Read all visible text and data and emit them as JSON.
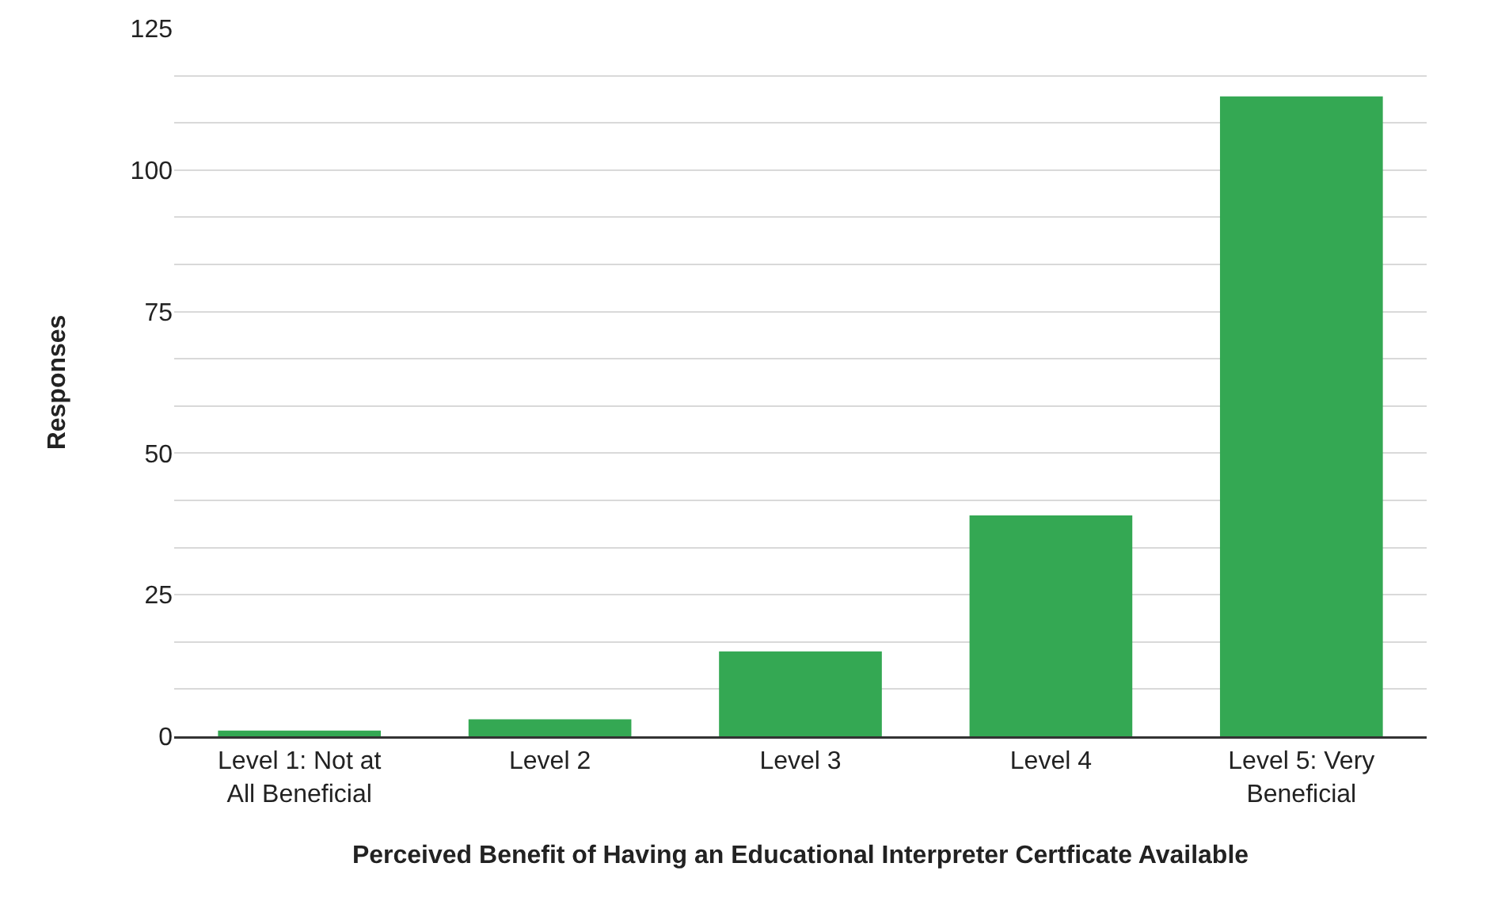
{
  "chart_data": {
    "type": "bar",
    "xlabel": "Perceived Benefit of Having an Educational Interpreter Certficate Available",
    "ylabel": "Responses",
    "categories": [
      "Level 1: Not at\nAll Beneficial",
      "Level 2",
      "Level 3",
      "Level 4",
      "Level 5: Very\nBeneficial"
    ],
    "values": [
      1,
      3,
      15,
      39,
      113
    ],
    "color": "#34a853",
    "ylim": [
      0,
      125
    ],
    "yticks": [
      0,
      {
        "value": 8.33,
        "label": null
      },
      {
        "value": 16.67,
        "label": null
      },
      25,
      {
        "value": 33.33,
        "label": null
      },
      {
        "value": 41.67,
        "label": null
      },
      50,
      {
        "value": 58.33,
        "label": null
      },
      {
        "value": 66.67,
        "label": null
      },
      75,
      {
        "value": 83.33,
        "label": null
      },
      {
        "value": 91.67,
        "label": null
      },
      100,
      {
        "value": 108.33,
        "label": null
      },
      {
        "value": 116.67,
        "label": null
      },
      125
    ],
    "grid": true
  }
}
